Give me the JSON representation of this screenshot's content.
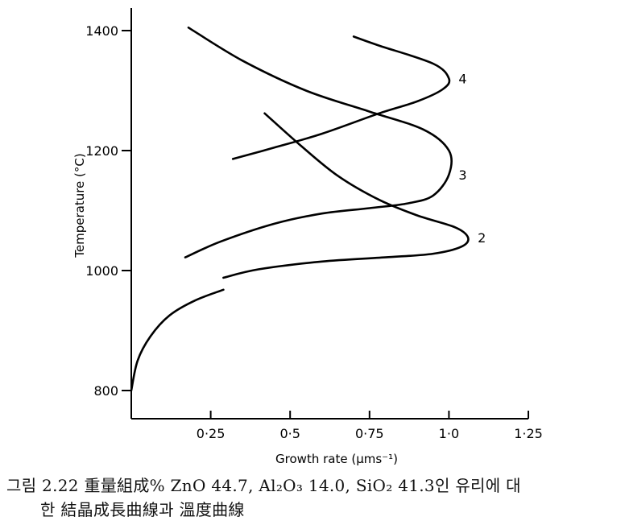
{
  "chart_data": {
    "type": "line",
    "xlabel": "Growth rate (μms⁻¹)",
    "ylabel": "Temperature (°C)",
    "xlim": [
      0,
      1.25
    ],
    "ylim": [
      750,
      1450
    ],
    "x_ticks": [
      0.25,
      0.5,
      0.75,
      1.0,
      1.25
    ],
    "x_tick_labels": [
      "0·25",
      "0·5",
      "0·75",
      "1·0",
      "1·25"
    ],
    "y_ticks": [
      800,
      1000,
      1200,
      1400
    ],
    "y_tick_labels": [
      "800",
      "1000",
      "1200",
      "1400"
    ],
    "grid": false,
    "legend": "none",
    "series": [
      {
        "label": "",
        "points": [
          [
            0.0,
            800
          ],
          [
            0.02,
            850
          ],
          [
            0.06,
            890
          ],
          [
            0.12,
            925
          ],
          [
            0.2,
            950
          ],
          [
            0.29,
            968
          ]
        ]
      },
      {
        "name": "2",
        "points": [
          [
            0.29,
            988
          ],
          [
            0.4,
            1002
          ],
          [
            0.6,
            1015
          ],
          [
            0.8,
            1022
          ],
          [
            0.95,
            1028
          ],
          [
            1.04,
            1040
          ],
          [
            1.06,
            1055
          ],
          [
            1.02,
            1072
          ],
          [
            0.9,
            1092
          ],
          [
            0.78,
            1118
          ],
          [
            0.65,
            1158
          ],
          [
            0.53,
            1210
          ],
          [
            0.42,
            1262
          ]
        ]
      },
      {
        "name": "3",
        "points": [
          [
            0.17,
            1022
          ],
          [
            0.28,
            1048
          ],
          [
            0.45,
            1078
          ],
          [
            0.6,
            1095
          ],
          [
            0.75,
            1104
          ],
          [
            0.87,
            1112
          ],
          [
            0.95,
            1125
          ],
          [
            1.0,
            1160
          ],
          [
            1.0,
            1200
          ],
          [
            0.92,
            1235
          ],
          [
            0.75,
            1265
          ],
          [
            0.55,
            1300
          ],
          [
            0.35,
            1350
          ],
          [
            0.18,
            1405
          ]
        ]
      },
      {
        "name": "4",
        "points": [
          [
            0.32,
            1186
          ],
          [
            0.45,
            1205
          ],
          [
            0.6,
            1228
          ],
          [
            0.78,
            1262
          ],
          [
            0.9,
            1282
          ],
          [
            0.98,
            1302
          ],
          [
            1.0,
            1320
          ],
          [
            0.95,
            1345
          ],
          [
            0.78,
            1375
          ],
          [
            0.7,
            1390
          ]
        ]
      }
    ]
  },
  "caption": {
    "line1": "그림 2.22  重量組成% ZnO 44.7, Al₂O₃ 14.0, SiO₂ 41.3인 유리에 대",
    "line2": "한 結晶成長曲線과 溫度曲線"
  }
}
